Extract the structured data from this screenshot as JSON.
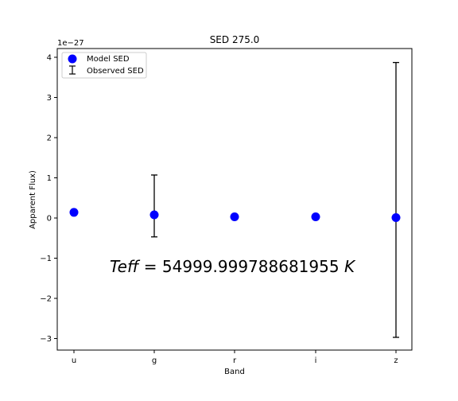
{
  "chart_data": {
    "type": "scatter",
    "title": "SED 275.0",
    "xlabel": "Band",
    "ylabel": "Apparent Flux)",
    "offset_text": "1e−27",
    "categories": [
      "u",
      "g",
      "r",
      "i",
      "z"
    ],
    "y_ticks": [
      -3,
      -2,
      -1,
      0,
      1,
      2,
      3,
      4
    ],
    "y_tick_labels": [
      "−3",
      "−2",
      "−1",
      "0",
      "1",
      "2",
      "3",
      "4"
    ],
    "ylim": [
      -3.3,
      4.2
    ],
    "y_unit_scale": "1e-27",
    "grid": false,
    "legend_position": "upper left",
    "series": [
      {
        "name": "Model SED",
        "kind": "scatter",
        "color": "#0000ff",
        "values": [
          0.14,
          0.08,
          0.03,
          0.03,
          0.01
        ]
      },
      {
        "name": "Observed SED",
        "kind": "errorbar",
        "color": "#000000",
        "centers": [
          null,
          0.3,
          null,
          null,
          0.45
        ],
        "errors": [
          null,
          0.77,
          null,
          null,
          3.42
        ]
      }
    ],
    "annotation": {
      "italic_part": "Teff",
      "rest": " = 54999.999788681955 ",
      "unit": "K",
      "y": -1.2
    }
  }
}
